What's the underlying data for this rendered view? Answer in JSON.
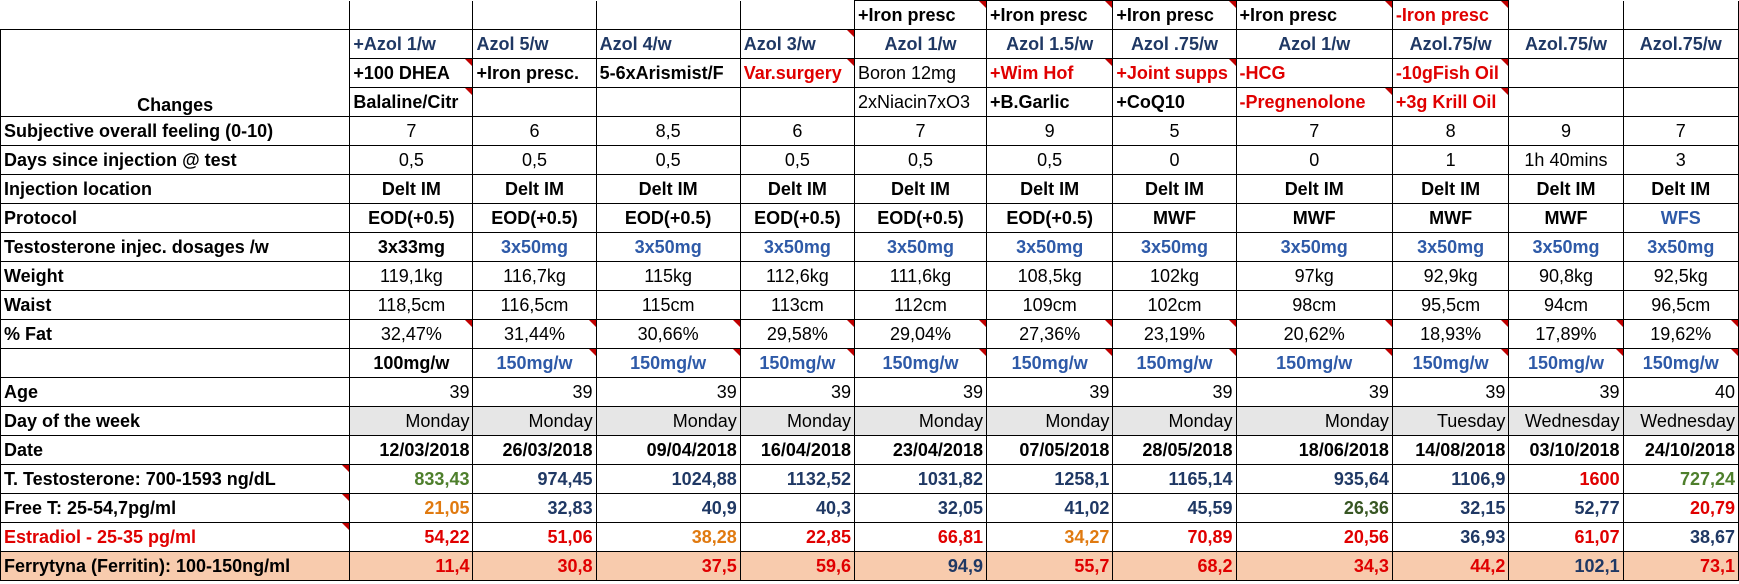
{
  "labels": {
    "changes": "Changes",
    "feeling": "Subjective overall feeling (0-10)",
    "days_since": "Days since injection @ test",
    "location": "Injection location",
    "protocol": "Protocol",
    "dosage": "Testosterone injec. dosages /w",
    "weight": "Weight",
    "waist": "Waist",
    "fat": "% Fat",
    "age": "Age",
    "dow": "Day of the week",
    "date": "Date",
    "total_t": "T. Testosterone: 700-1593 ng/dL",
    "free_t": "Free T: 25-54,7pg/ml",
    "estradiol": "Estradiol - 25-35 pg/ml",
    "ferritin": "Ferrytyna (Ferritin): 100-150ng/ml"
  },
  "changes_row0": [
    "",
    "",
    "",
    "",
    "+Iron presc",
    "+Iron presc",
    "+Iron presc",
    "+Iron presc",
    "-Iron presc",
    "",
    ""
  ],
  "changes_row1": [
    "+Azol 1/w",
    "Azol 5/w",
    "Azol 4/w",
    "Azol 3/w",
    "Azol 1/w",
    "Azol 1.5/w",
    "Azol .75/w",
    "Azol 1/w",
    "Azol.75/w",
    "Azol.75/w",
    "Azol.75/w"
  ],
  "changes_row2": [
    "+100 DHEA",
    "+Iron presc.",
    "5-6xArismist/F",
    "Var.surgery",
    "Boron 12mg",
    "+Wim Hof",
    "+Joint supps",
    "-HCG",
    "-10gFish Oil",
    "",
    ""
  ],
  "changes_row3": [
    "Balaline/Citr",
    "",
    "",
    "",
    "2xNiacin7xO3",
    "+B.Garlic",
    "+CoQ10",
    "-Pregnenolone",
    "+3g Krill Oil",
    "",
    ""
  ],
  "feeling": [
    "7",
    "6",
    "8,5",
    "6",
    "7",
    "9",
    "5",
    "7",
    "8",
    "9",
    "7"
  ],
  "days_since": [
    "0,5",
    "0,5",
    "0,5",
    "0,5",
    "0,5",
    "0,5",
    "0",
    "0",
    "1",
    "1h 40mins",
    "3"
  ],
  "location": [
    "Delt IM",
    "Delt IM",
    "Delt IM",
    "Delt IM",
    "Delt IM",
    "Delt IM",
    "Delt IM",
    "Delt IM",
    "Delt IM",
    "Delt IM",
    "Delt IM"
  ],
  "protocol": [
    "EOD(+0.5)",
    "EOD(+0.5)",
    "EOD(+0.5)",
    "EOD(+0.5)",
    "EOD(+0.5)",
    "EOD(+0.5)",
    "MWF",
    "MWF",
    "MWF",
    "MWF",
    "WFS"
  ],
  "dosage": [
    "3x33mg",
    "3x50mg",
    "3x50mg",
    "3x50mg",
    "3x50mg",
    "3x50mg",
    "3x50mg",
    "3x50mg",
    "3x50mg",
    "3x50mg",
    "3x50mg"
  ],
  "weight": [
    "119,1kg",
    "116,7kg",
    "115kg",
    "112,6kg",
    "111,6kg",
    "108,5kg",
    "102kg",
    "97kg",
    "92,9kg",
    "90,8kg",
    "92,5kg"
  ],
  "waist": [
    "118,5cm",
    "116,5cm",
    "115cm",
    "113cm",
    "112cm",
    "109cm",
    "102cm",
    "98cm",
    "95,5cm",
    "94cm",
    "96,5cm"
  ],
  "fat": [
    "32,47%",
    "31,44%",
    "30,66%",
    "29,58%",
    "29,04%",
    "27,36%",
    "23,19%",
    "20,62%",
    "18,93%",
    "17,89%",
    "19,62%"
  ],
  "weekly": [
    "100mg/w",
    "150mg/w",
    "150mg/w",
    "150mg/w",
    "150mg/w",
    "150mg/w",
    "150mg/w",
    "150mg/w",
    "150mg/w",
    "150mg/w",
    "150mg/w"
  ],
  "age": [
    "39",
    "39",
    "39",
    "39",
    "39",
    "39",
    "39",
    "39",
    "39",
    "39",
    "40"
  ],
  "dow": [
    "Monday",
    "Monday",
    "Monday",
    "Monday",
    "Monday",
    "Monday",
    "Monday",
    "Monday",
    "Tuesday",
    "Wednesday",
    "Wednesday"
  ],
  "date": [
    "12/03/2018",
    "26/03/2018",
    "09/04/2018",
    "16/04/2018",
    "23/04/2018",
    "07/05/2018",
    "28/05/2018",
    "18/06/2018",
    "14/08/2018",
    "03/10/2018",
    "24/10/2018"
  ],
  "total_t": [
    "833,43",
    "974,45",
    "1024,88",
    "1132,52",
    "1031,82",
    "1258,1",
    "1165,14",
    "935,64",
    "1106,9",
    "1600",
    "727,24"
  ],
  "free_t": [
    "21,05",
    "32,83",
    "40,9",
    "40,3",
    "32,05",
    "41,02",
    "45,59",
    "26,36",
    "32,15",
    "52,77",
    "20,79"
  ],
  "estradiol": [
    "54,22",
    "51,06",
    "38,28",
    "22,85",
    "66,81",
    "34,27",
    "70,89",
    "20,56",
    "36,93",
    "61,07",
    "38,67"
  ],
  "ferritin": [
    "11,4",
    "30,8",
    "37,5",
    "59,6",
    "94,9",
    "55,7",
    "68,2",
    "34,3",
    "44,2",
    "102,1",
    "73,1"
  ],
  "colors": {
    "navy": "#1f3864",
    "blue": "#2e5aa8",
    "red": "#e00000",
    "orange": "#e07a10",
    "green": "#4e7f2c",
    "gray_fill": "#e6e6e6",
    "peach_fill": "#f8cbad"
  }
}
